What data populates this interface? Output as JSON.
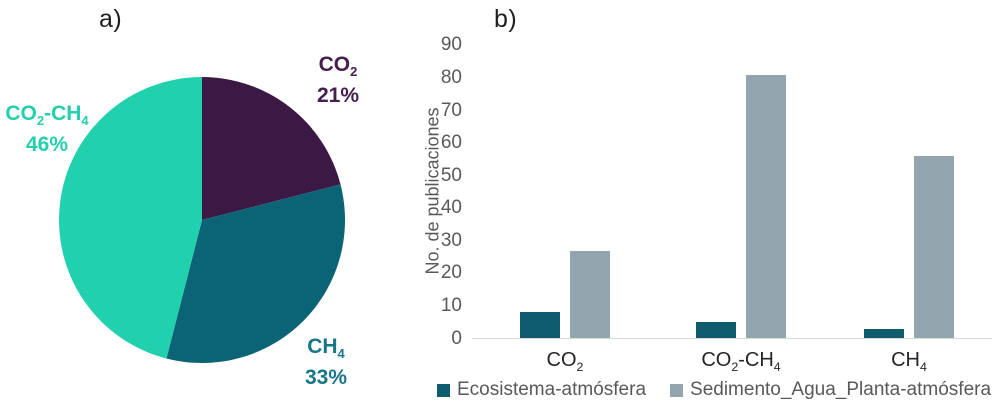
{
  "panels": {
    "a_title": "a)",
    "b_title": "b)"
  },
  "chart_data": [
    {
      "type": "pie",
      "panel": "a)",
      "labels": [
        "CO~2~",
        "CH~4~",
        "CO~2~-CH~4~"
      ],
      "values": [
        21,
        33,
        46
      ],
      "unit": "%",
      "value_labels": [
        "21%",
        "33%",
        "46%"
      ],
      "colors": [
        "#3c1845",
        "#0a6476",
        "#21d1ad"
      ],
      "label_colors": [
        "#44204c",
        "#18758a",
        "#23cfac"
      ],
      "start_angle_deg": 0,
      "direction": "clockwise",
      "legend": "none (labels around pie)"
    },
    {
      "type": "bar",
      "panel": "b)",
      "categories": [
        "CO~2~",
        "CO~2~-CH~4~",
        "CH~4~"
      ],
      "series": [
        {
          "name": "Ecosistema-atmósfera",
          "values": [
            8,
            5,
            3
          ],
          "color": "#0e5c6d"
        },
        {
          "name": "Sedimento_Agua_Planta-atmósfera",
          "values": [
            27,
            81,
            56
          ],
          "color": "#92a5ad"
        }
      ],
      "ylabel": "No. de publicaciones",
      "ylim": [
        0,
        90
      ],
      "ytick_step": 10,
      "yticks": [
        0,
        10,
        20,
        30,
        40,
        50,
        60,
        70,
        80,
        90
      ],
      "grid": false,
      "axis_line_color": "#d9d9d9",
      "legend_position": "bottom"
    }
  ]
}
